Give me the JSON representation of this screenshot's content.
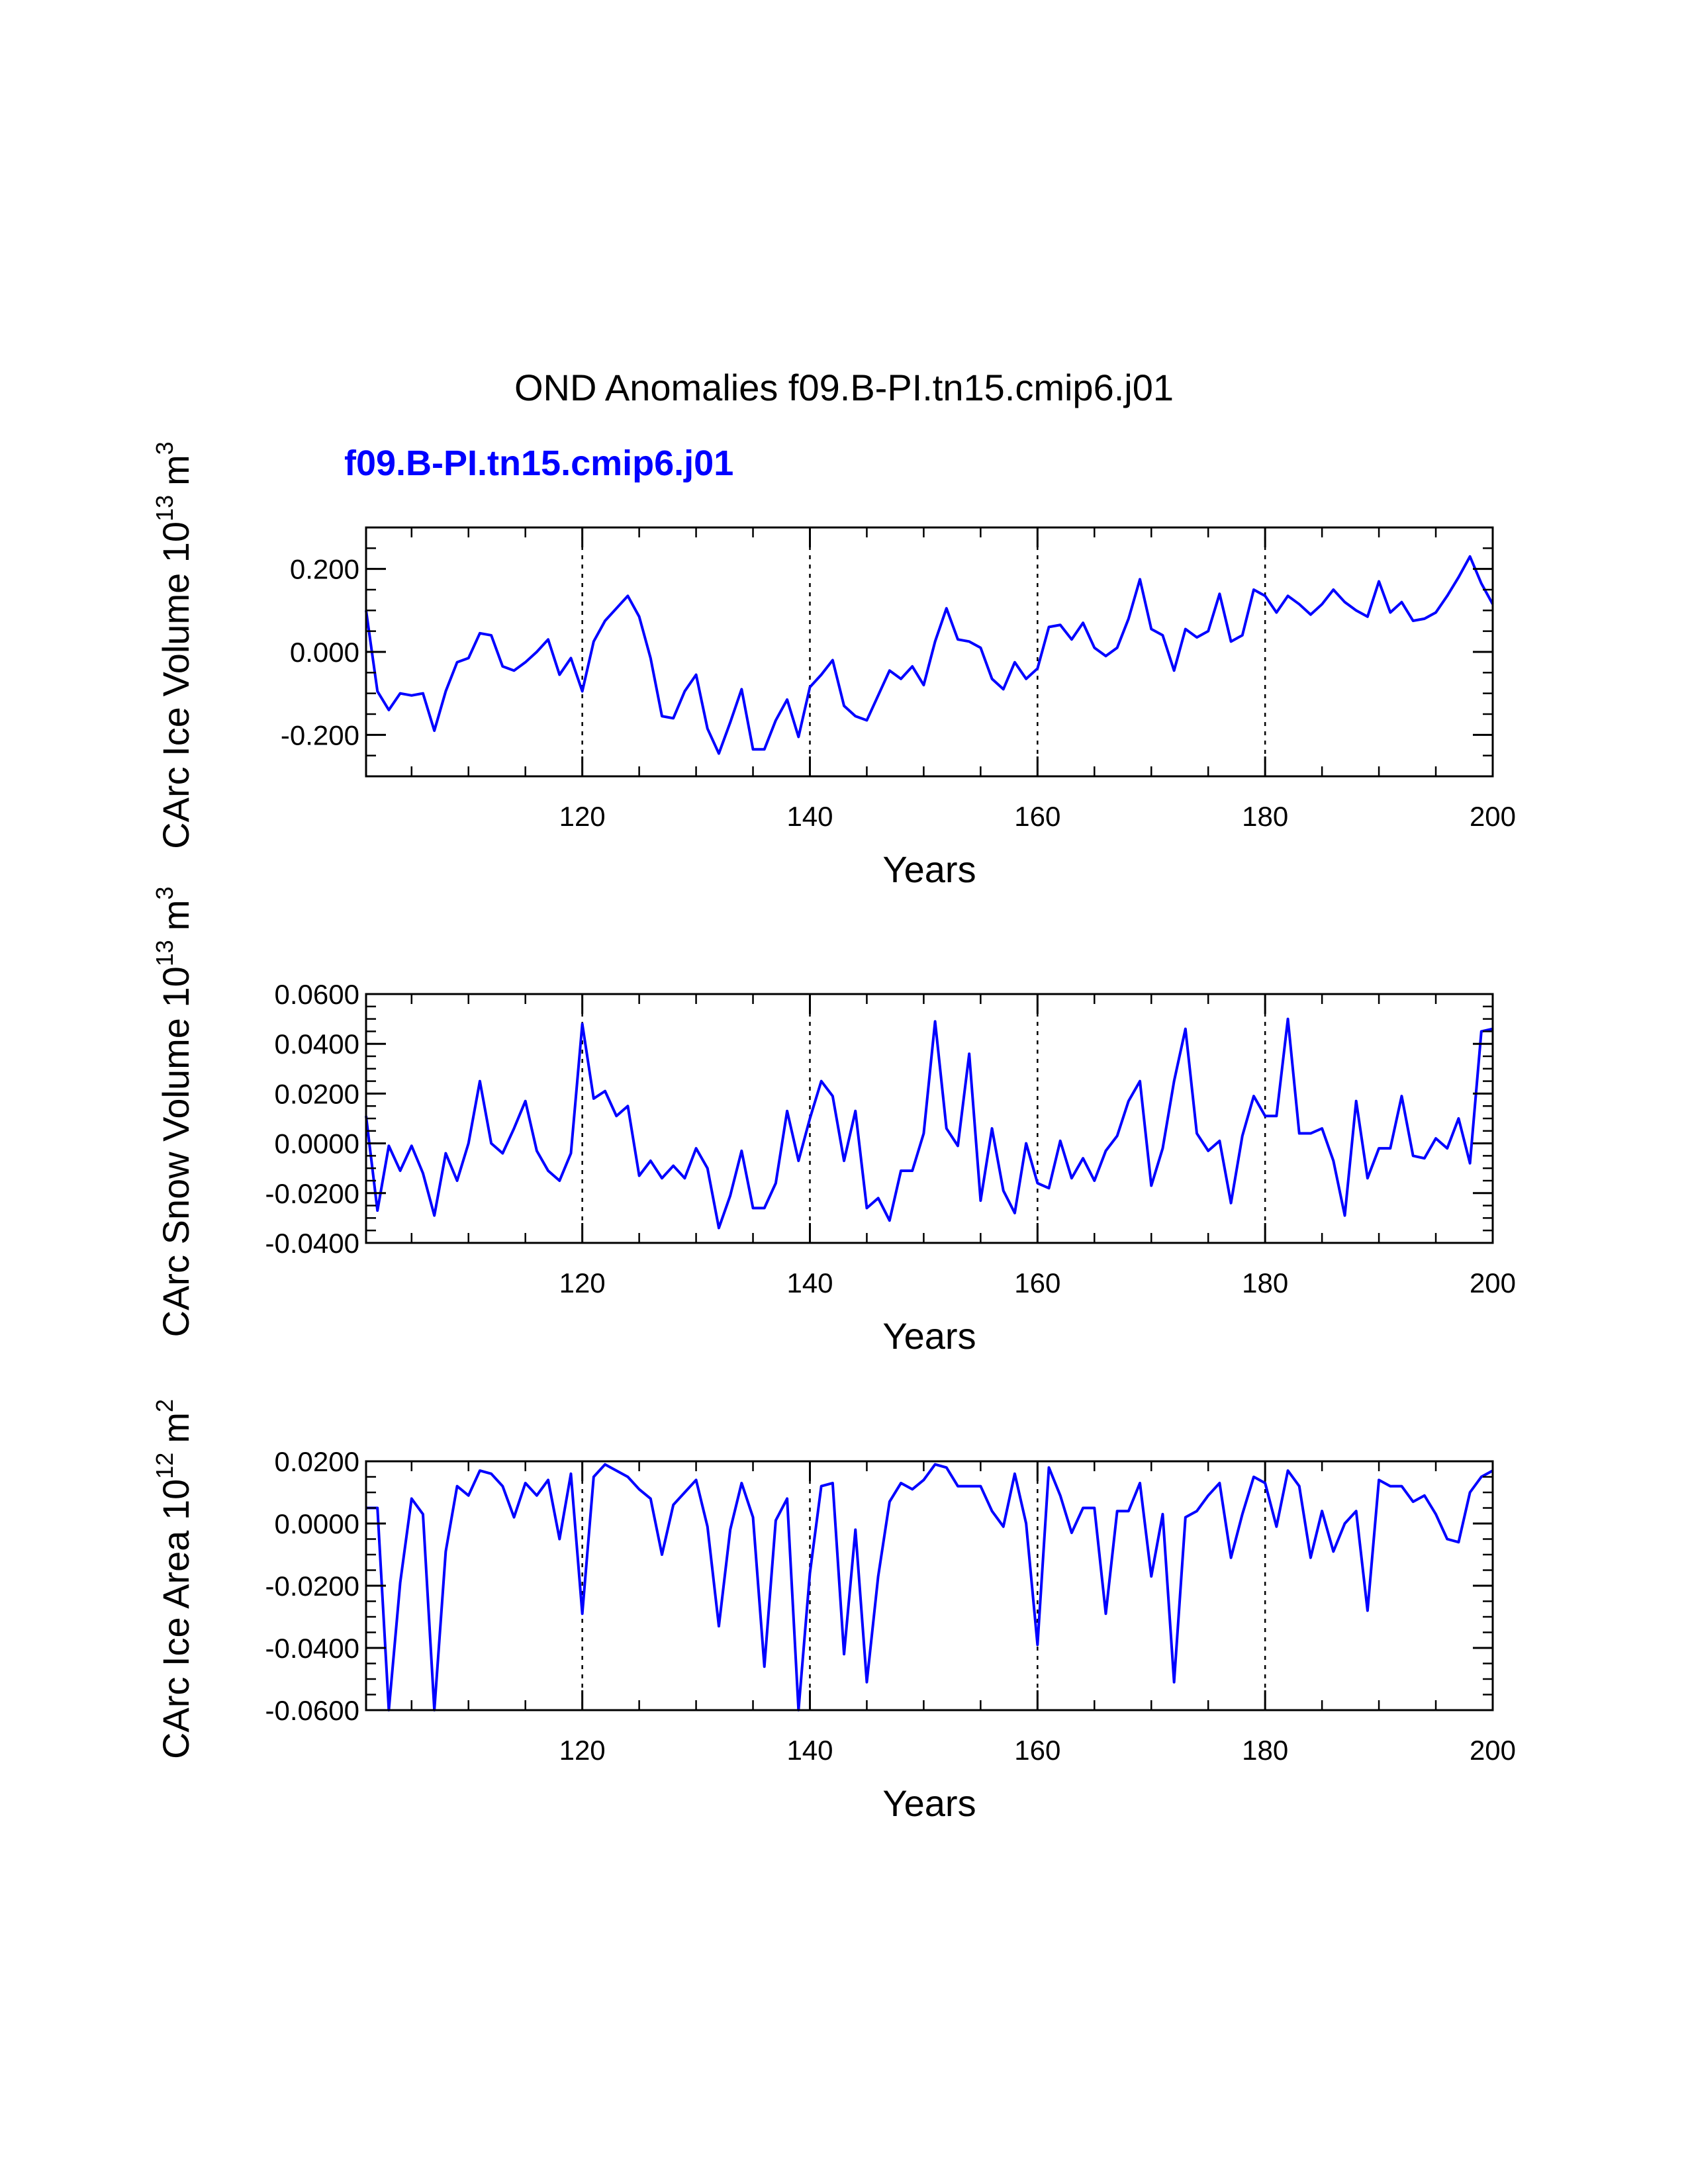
{
  "figure": {
    "title": "OND Anomalies f09.B-PI.tn15.cmip6.j01",
    "subtitle": "f09.B-PI.tn15.cmip6.j01",
    "subtitle_color": "#0000ff",
    "line_color": "#0000ff"
  },
  "chart_data": [
    {
      "type": "line",
      "name": "ice-volume",
      "ylabel": "CArc Ice Volume 10",
      "ylabel_exp": "13",
      "ylabel_unit": "m",
      "ylabel_unit_exp": "3",
      "xlabel": "Years",
      "xlim": [
        101,
        200
      ],
      "ylim": [
        -0.3,
        0.3
      ],
      "x_ticks": [
        120,
        140,
        160,
        180,
        200
      ],
      "x_tick_labels": [
        "120",
        "140",
        "160",
        "180",
        "200"
      ],
      "y_ticks": [
        0.2,
        0.0,
        -0.2
      ],
      "y_tick_labels": [
        "0.200",
        "0.000",
        "-0.200"
      ],
      "y_minor_step": 0.05,
      "vlines": [
        120,
        140,
        160,
        180
      ],
      "start_year": 101,
      "values": [
        0.1,
        -0.095,
        -0.14,
        -0.1,
        -0.105,
        -0.1,
        -0.19,
        -0.095,
        -0.025,
        -0.015,
        0.045,
        0.04,
        -0.035,
        -0.045,
        -0.025,
        0.0,
        0.03,
        -0.055,
        -0.015,
        -0.095,
        0.025,
        0.075,
        0.105,
        0.135,
        0.085,
        -0.015,
        -0.155,
        -0.16,
        -0.095,
        -0.055,
        -0.185,
        -0.245,
        -0.17,
        -0.09,
        -0.235,
        -0.235,
        -0.165,
        -0.115,
        -0.205,
        -0.085,
        -0.055,
        -0.02,
        -0.13,
        -0.155,
        -0.165,
        -0.105,
        -0.045,
        -0.065,
        -0.035,
        -0.08,
        0.025,
        0.105,
        0.03,
        0.025,
        0.01,
        -0.065,
        -0.09,
        -0.025,
        -0.065,
        -0.04,
        0.06,
        0.065,
        0.03,
        0.07,
        0.01,
        -0.01,
        0.01,
        0.08,
        0.175,
        0.055,
        0.04,
        -0.045,
        0.055,
        0.035,
        0.05,
        0.14,
        0.025,
        0.04,
        0.15,
        0.135,
        0.095,
        0.135,
        0.115,
        0.09,
        0.115,
        0.15,
        0.12,
        0.1,
        0.085,
        0.17,
        0.095,
        0.12,
        0.075,
        0.08,
        0.095,
        0.135,
        0.18,
        0.23,
        0.165,
        0.115
      ]
    },
    {
      "type": "line",
      "name": "snow-volume",
      "ylabel": "CArc Snow Volume 10",
      "ylabel_exp": "13",
      "ylabel_unit": "m",
      "ylabel_unit_exp": "3",
      "xlabel": "Years",
      "xlim": [
        101,
        200
      ],
      "ylim": [
        -0.04,
        0.06
      ],
      "x_ticks": [
        120,
        140,
        160,
        180,
        200
      ],
      "x_tick_labels": [
        "120",
        "140",
        "160",
        "180",
        "200"
      ],
      "y_ticks": [
        0.06,
        0.04,
        0.02,
        0.0,
        -0.02,
        -0.04
      ],
      "y_tick_labels": [
        "0.0600",
        "0.0400",
        "0.0200",
        "0.0000",
        "-0.0200",
        "-0.0400"
      ],
      "y_minor_step": 0.005,
      "vlines": [
        120,
        140,
        160,
        180
      ],
      "start_year": 101,
      "values": [
        0.011,
        -0.027,
        -0.001,
        -0.011,
        -0.001,
        -0.012,
        -0.029,
        -0.004,
        -0.015,
        0.0,
        0.025,
        0.0,
        -0.004,
        0.006,
        0.017,
        -0.003,
        -0.011,
        -0.015,
        -0.004,
        0.048,
        0.018,
        0.021,
        0.011,
        0.015,
        -0.013,
        -0.007,
        -0.014,
        -0.009,
        -0.014,
        -0.002,
        -0.01,
        -0.034,
        -0.021,
        -0.003,
        -0.026,
        -0.026,
        -0.016,
        0.013,
        -0.007,
        0.01,
        0.025,
        0.019,
        -0.007,
        0.013,
        -0.026,
        -0.022,
        -0.031,
        -0.011,
        -0.011,
        0.004,
        0.049,
        0.006,
        -0.001,
        0.036,
        -0.023,
        0.006,
        -0.019,
        -0.028,
        0.0,
        -0.016,
        -0.018,
        0.001,
        -0.014,
        -0.006,
        -0.015,
        -0.003,
        0.003,
        0.017,
        0.025,
        -0.017,
        -0.002,
        0.025,
        0.046,
        0.004,
        -0.003,
        0.001,
        -0.024,
        0.003,
        0.019,
        0.011,
        0.011,
        0.05,
        0.004,
        0.004,
        0.006,
        -0.007,
        -0.029,
        0.017,
        -0.014,
        -0.002,
        -0.002,
        0.019,
        -0.005,
        -0.006,
        0.002,
        -0.002,
        0.01,
        -0.008,
        0.045,
        0.046
      ]
    },
    {
      "type": "line",
      "name": "ice-area",
      "ylabel": "CArc Ice Area 10",
      "ylabel_exp": "12",
      "ylabel_unit": "m",
      "ylabel_unit_exp": "2",
      "xlabel": "Years",
      "xlim": [
        101,
        200
      ],
      "ylim": [
        -0.06,
        0.02
      ],
      "x_ticks": [
        120,
        140,
        160,
        180,
        200
      ],
      "x_tick_labels": [
        "120",
        "140",
        "160",
        "180",
        "200"
      ],
      "y_ticks": [
        0.02,
        0.0,
        -0.02,
        -0.04,
        -0.06
      ],
      "y_tick_labels": [
        "0.0200",
        "0.0000",
        "-0.0200",
        "-0.0400",
        "-0.0600"
      ],
      "y_minor_step": 0.005,
      "vlines": [
        120,
        140,
        160,
        180
      ],
      "start_year": 101,
      "values": [
        0.005,
        0.005,
        -0.06,
        -0.019,
        0.008,
        0.003,
        -0.06,
        -0.009,
        0.012,
        0.009,
        0.017,
        0.016,
        0.012,
        0.002,
        0.013,
        0.009,
        0.014,
        -0.005,
        0.016,
        -0.029,
        0.015,
        0.019,
        0.017,
        0.015,
        0.011,
        0.008,
        -0.01,
        0.006,
        0.01,
        0.014,
        -0.001,
        -0.033,
        -0.002,
        0.013,
        0.002,
        -0.046,
        0.001,
        0.008,
        -0.06,
        -0.016,
        0.012,
        0.013,
        -0.042,
        -0.002,
        -0.051,
        -0.017,
        0.007,
        0.013,
        0.011,
        0.014,
        0.019,
        0.018,
        0.012,
        0.012,
        0.012,
        0.004,
        -0.001,
        0.016,
        0.0,
        -0.039,
        0.018,
        0.009,
        -0.003,
        0.005,
        0.005,
        -0.029,
        0.004,
        0.004,
        0.013,
        -0.017,
        0.003,
        -0.051,
        0.002,
        0.004,
        0.009,
        0.013,
        -0.011,
        0.003,
        0.015,
        0.013,
        -0.001,
        0.017,
        0.012,
        -0.011,
        0.004,
        -0.009,
        0.0,
        0.004,
        -0.028,
        0.014,
        0.012,
        0.012,
        0.007,
        0.009,
        0.003,
        -0.005,
        -0.006,
        0.01,
        0.015,
        0.017
      ]
    }
  ]
}
